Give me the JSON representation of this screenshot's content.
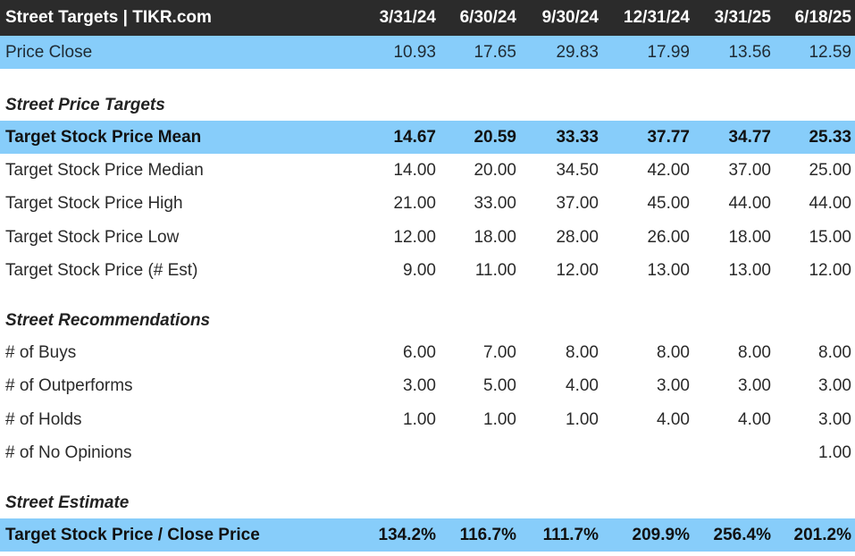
{
  "header": {
    "title": "Street Targets | TIKR.com",
    "dates": [
      "3/31/24",
      "6/30/24",
      "9/30/24",
      "12/31/24",
      "3/31/25",
      "6/18/25"
    ]
  },
  "price_close": {
    "label": "Price Close",
    "values": [
      "10.93",
      "17.65",
      "29.83",
      "17.99",
      "13.56",
      "12.59"
    ]
  },
  "street_price_targets": {
    "title": "Street Price Targets",
    "rows": [
      {
        "label": "Target Stock Price Mean",
        "values": [
          "14.67",
          "20.59",
          "33.33",
          "37.77",
          "34.77",
          "25.33"
        ]
      },
      {
        "label": "Target Stock Price Median",
        "values": [
          "14.00",
          "20.00",
          "34.50",
          "42.00",
          "37.00",
          "25.00"
        ]
      },
      {
        "label": "Target Stock Price High",
        "values": [
          "21.00",
          "33.00",
          "37.00",
          "45.00",
          "44.00",
          "44.00"
        ]
      },
      {
        "label": "Target Stock Price Low",
        "values": [
          "12.00",
          "18.00",
          "28.00",
          "26.00",
          "18.00",
          "15.00"
        ]
      },
      {
        "label": "Target Stock Price (# Est)",
        "values": [
          "9.00",
          "11.00",
          "12.00",
          "13.00",
          "13.00",
          "12.00"
        ]
      }
    ]
  },
  "street_recommendations": {
    "title": "Street Recommendations",
    "rows": [
      {
        "label": "# of Buys",
        "values": [
          "6.00",
          "7.00",
          "8.00",
          "8.00",
          "8.00",
          "8.00"
        ]
      },
      {
        "label": "# of Outperforms",
        "values": [
          "3.00",
          "5.00",
          "4.00",
          "3.00",
          "3.00",
          "3.00"
        ]
      },
      {
        "label": "# of Holds",
        "values": [
          "1.00",
          "1.00",
          "1.00",
          "4.00",
          "4.00",
          "3.00"
        ]
      },
      {
        "label": "# of No Opinions",
        "values": [
          "",
          "",
          "",
          "",
          "",
          "1.00"
        ]
      }
    ]
  },
  "street_estimate": {
    "title": "Street Estimate",
    "rows": [
      {
        "label": "Target Stock Price / Close Price",
        "values": [
          "134.2%",
          "116.7%",
          "111.7%",
          "209.9%",
          "256.4%",
          "201.2%"
        ]
      }
    ]
  },
  "colors": {
    "header_bg": "#2b2b2b",
    "highlight_bg": "#87cdfa"
  }
}
